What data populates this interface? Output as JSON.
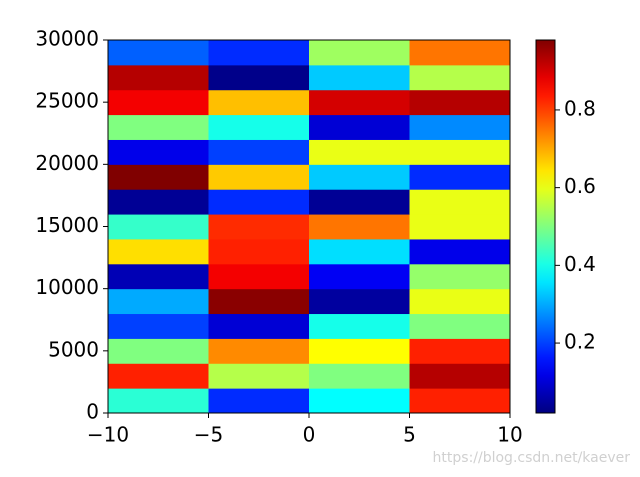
{
  "chart_data": {
    "type": "heatmap",
    "x_edges": [
      -10,
      -5,
      0,
      5,
      10
    ],
    "y_edges": [
      0,
      2000,
      4000,
      6000,
      8000,
      10000,
      12000,
      14000,
      16000,
      18000,
      20000,
      22000,
      24000,
      26000,
      28000,
      30000
    ],
    "values": [
      [
        0.42,
        0.18,
        0.38,
        0.83
      ],
      [
        0.83,
        0.55,
        0.5,
        0.93
      ],
      [
        0.5,
        0.73,
        0.62,
        0.83
      ],
      [
        0.2,
        0.1,
        0.4,
        0.5
      ],
      [
        0.3,
        0.97,
        0.05,
        0.6
      ],
      [
        0.07,
        0.87,
        0.13,
        0.52
      ],
      [
        0.65,
        0.83,
        0.35,
        0.12
      ],
      [
        0.43,
        0.82,
        0.75,
        0.6
      ],
      [
        0.04,
        0.18,
        0.04,
        0.6
      ],
      [
        0.98,
        0.67,
        0.33,
        0.18
      ],
      [
        0.12,
        0.2,
        0.6,
        0.6
      ],
      [
        0.5,
        0.4,
        0.1,
        0.27
      ],
      [
        0.87,
        0.68,
        0.9,
        0.93
      ],
      [
        0.93,
        0.03,
        0.33,
        0.55
      ],
      [
        0.23,
        0.18,
        0.53,
        0.75
      ]
    ],
    "colormap": "jet",
    "clim": [
      0.02,
      0.98
    ],
    "xlim": [
      -10,
      10
    ],
    "xticks": [
      {
        "value": -10,
        "label": "−10"
      },
      {
        "value": -5,
        "label": "−5"
      },
      0,
      5,
      10
    ],
    "ylim": [
      0,
      30000
    ],
    "yticks": [
      0,
      5000,
      10000,
      15000,
      20000,
      25000,
      30000
    ],
    "cbar_ticks": [
      0.2,
      0.4,
      0.6,
      0.8
    ],
    "watermark": "https://blog.csdn.net/kaever"
  }
}
